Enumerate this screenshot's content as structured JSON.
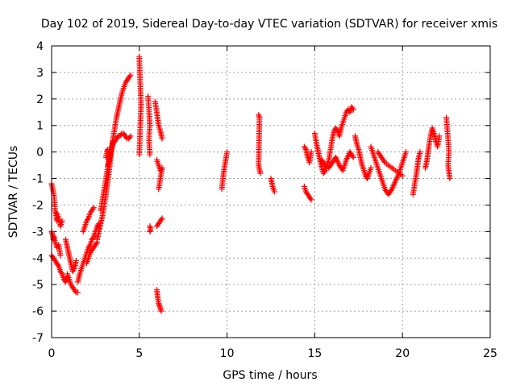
{
  "chart_data": {
    "type": "scatter",
    "title": "Day 102 of 2019, Sidereal Day-to-day VTEC variation (SDTVAR) for receiver xmis",
    "xlabel": "GPS time / hours",
    "ylabel": "SDTVAR / TECUs",
    "xlim": [
      0,
      25
    ],
    "ylim": [
      -7,
      4
    ],
    "xticks": [
      0,
      5,
      10,
      15,
      20,
      25
    ],
    "yticks": [
      -7,
      -6,
      -5,
      -4,
      -3,
      -2,
      -1,
      0,
      1,
      2,
      3,
      4
    ],
    "grid": true,
    "marker": "+",
    "colors": {
      "points": "#ff0000",
      "grid": "#a0a0a0",
      "axes": "#000000"
    },
    "series": [
      {
        "name": "SDTVAR",
        "segments": [
          {
            "x": [
              0.0,
              0.1,
              0.15,
              0.2,
              0.3,
              0.35
            ],
            "y": [
              -1.2,
              -1.5,
              -1.7,
              -2.2,
              -2.6,
              -2.5
            ]
          },
          {
            "x": [
              0.0,
              0.05,
              0.1,
              0.15,
              0.2,
              0.3,
              0.4,
              0.5
            ],
            "y": [
              -3.0,
              -3.1,
              -3.3,
              -3.2,
              -3.4,
              -3.6,
              -3.5,
              -3.9
            ]
          },
          {
            "x": [
              0.0,
              0.1,
              0.2,
              0.3,
              0.4,
              0.5,
              0.6,
              0.7,
              0.8,
              0.9
            ],
            "y": [
              -3.9,
              -4.0,
              -4.1,
              -4.2,
              -4.3,
              -4.5,
              -4.6,
              -4.8,
              -4.9,
              -4.7
            ]
          },
          {
            "x": [
              0.3,
              0.4,
              0.5,
              0.6
            ],
            "y": [
              -2.3,
              -2.5,
              -2.8,
              -2.6
            ]
          },
          {
            "x": [
              0.8,
              0.9,
              1.0,
              1.1,
              1.2,
              1.3,
              1.4
            ],
            "y": [
              -3.3,
              -3.6,
              -3.9,
              -4.2,
              -4.5,
              -4.4,
              -4.1
            ]
          },
          {
            "x": [
              0.9,
              1.0,
              1.1,
              1.2,
              1.3,
              1.4,
              1.5
            ],
            "y": [
              -4.6,
              -4.8,
              -5.0,
              -5.1,
              -5.2,
              -5.3,
              -5.3
            ]
          },
          {
            "x": [
              1.5,
              1.6,
              1.7,
              1.8,
              1.9,
              2.0,
              2.1,
              2.2,
              2.3,
              2.4,
              2.5,
              2.6,
              2.7
            ],
            "y": [
              -4.9,
              -4.6,
              -4.4,
              -4.2,
              -4.0,
              -3.8,
              -3.6,
              -3.5,
              -3.3,
              -3.2,
              -3.0,
              -2.8,
              -2.7
            ]
          },
          {
            "x": [
              1.8,
              1.9,
              2.0,
              2.1,
              2.2,
              2.3,
              2.4
            ],
            "y": [
              -3.0,
              -2.8,
              -2.6,
              -2.5,
              -2.3,
              -2.2,
              -2.1
            ]
          },
          {
            "x": [
              2.0,
              2.1,
              2.2,
              2.3,
              2.4,
              2.5,
              2.6
            ],
            "y": [
              -4.2,
              -4.0,
              -3.8,
              -3.7,
              -3.6,
              -3.5,
              -3.4
            ]
          },
          {
            "x": [
              2.6,
              2.7,
              2.8,
              2.9,
              3.0,
              3.1,
              3.2,
              3.3,
              3.4,
              3.5,
              3.6,
              3.7,
              3.8,
              3.9,
              4.0,
              4.1,
              4.2,
              4.3,
              4.4,
              4.5
            ],
            "y": [
              -3.3,
              -3.0,
              -2.7,
              -2.4,
              -2.0,
              -1.6,
              -1.1,
              -0.6,
              0.0,
              0.5,
              0.9,
              1.3,
              1.6,
              1.9,
              2.2,
              2.4,
              2.6,
              2.7,
              2.8,
              2.9
            ]
          },
          {
            "x": [
              2.8,
              2.9,
              3.0,
              3.1,
              3.2,
              3.3,
              3.4,
              3.5
            ],
            "y": [
              -2.2,
              -1.8,
              -1.4,
              -1.0,
              -0.6,
              -0.3,
              0.1,
              0.4
            ]
          },
          {
            "x": [
              3.2,
              3.3,
              3.4,
              3.5,
              3.6,
              3.7,
              3.8,
              3.9,
              4.0,
              4.1,
              4.2,
              4.3,
              4.4,
              4.5
            ],
            "y": [
              -0.5,
              -0.2,
              0.1,
              0.3,
              0.4,
              0.5,
              0.6,
              0.6,
              0.7,
              0.7,
              0.6,
              0.5,
              0.5,
              0.6
            ]
          },
          {
            "x": [
              3.1,
              3.15,
              3.2
            ],
            "y": [
              -0.2,
              0.0,
              0.1
            ]
          },
          {
            "x": [
              5.0,
              5.05,
              5.1,
              5.0
            ],
            "y": [
              3.6,
              2.6,
              1.8,
              -0.1
            ]
          },
          {
            "x": [
              5.5,
              5.55,
              5.6,
              5.55,
              5.6
            ],
            "y": [
              2.1,
              1.6,
              1.0,
              0.5,
              -0.1
            ]
          },
          {
            "x": [
              5.6,
              5.65,
              5.6
            ],
            "y": [
              -2.8,
              -2.9,
              -3.0
            ]
          },
          {
            "x": [
              5.9,
              6.0,
              6.1,
              6.2,
              6.3
            ],
            "y": [
              1.9,
              1.5,
              1.0,
              0.8,
              0.5
            ]
          },
          {
            "x": [
              6.0,
              6.1,
              6.2,
              6.3,
              6.1
            ],
            "y": [
              -0.3,
              -0.5,
              -0.7,
              -0.6,
              -1.4
            ]
          },
          {
            "x": [
              6.0,
              6.1,
              6.2,
              6.3
            ],
            "y": [
              -2.8,
              -2.7,
              -2.6,
              -2.5
            ]
          },
          {
            "x": [
              6.0,
              6.05,
              6.1,
              6.15,
              6.2,
              6.25
            ],
            "y": [
              -5.2,
              -5.5,
              -5.7,
              -5.8,
              -5.9,
              -6.0
            ]
          },
          {
            "x": [
              9.7,
              9.8,
              9.9,
              10.0
            ],
            "y": [
              -1.4,
              -0.8,
              -0.4,
              0.0
            ]
          },
          {
            "x": [
              11.8,
              11.85,
              11.8,
              11.9
            ],
            "y": [
              1.4,
              1.3,
              -0.5,
              -0.8
            ]
          },
          {
            "x": [
              12.5,
              12.6,
              12.7
            ],
            "y": [
              -1.0,
              -1.3,
              -1.5
            ]
          },
          {
            "x": [
              14.4,
              14.5,
              14.6,
              14.7,
              14.8
            ],
            "y": [
              0.2,
              0.1,
              -0.2,
              -0.4,
              0.0
            ]
          },
          {
            "x": [
              14.4,
              14.5,
              14.6,
              14.7,
              14.8
            ],
            "y": [
              -1.3,
              -1.5,
              -1.6,
              -1.7,
              -1.8
            ]
          },
          {
            "x": [
              15.0,
              15.1,
              15.2,
              15.3,
              15.4,
              15.5,
              15.6,
              15.7,
              15.8,
              15.9,
              16.0,
              16.1,
              16.2,
              16.3,
              16.4,
              16.5,
              16.6,
              16.7,
              16.8,
              16.9,
              17.0,
              17.1,
              17.2
            ],
            "y": [
              0.7,
              0.3,
              0.0,
              -0.3,
              -0.6,
              -0.8,
              -0.7,
              -0.5,
              -0.3,
              0.1,
              0.5,
              0.8,
              0.9,
              0.8,
              0.6,
              0.9,
              1.1,
              1.3,
              1.5,
              1.6,
              1.5,
              1.7,
              1.6
            ]
          },
          {
            "x": [
              15.4,
              15.6,
              15.8,
              16.0,
              16.2,
              16.4,
              16.6,
              16.8,
              17.0,
              17.2
            ],
            "y": [
              -0.3,
              -0.5,
              -0.6,
              -0.4,
              -0.2,
              -0.5,
              -0.7,
              -0.3,
              0.0,
              -0.2
            ]
          },
          {
            "x": [
              17.3,
              17.4,
              17.5,
              17.6,
              17.7,
              17.8,
              17.9,
              18.0,
              18.1,
              18.2
            ],
            "y": [
              0.6,
              0.3,
              0.1,
              -0.2,
              -0.5,
              -0.7,
              -0.9,
              -1.0,
              -0.8,
              -0.6
            ]
          },
          {
            "x": [
              18.2,
              18.4,
              18.6,
              18.8,
              19.0,
              19.2,
              19.4,
              19.6,
              19.8,
              20.0,
              20.2
            ],
            "y": [
              0.2,
              -0.2,
              -0.6,
              -1.0,
              -1.4,
              -1.6,
              -1.4,
              -1.1,
              -0.8,
              -0.4,
              0.0
            ]
          },
          {
            "x": [
              18.6,
              18.8,
              19.0,
              19.2,
              19.4,
              19.6,
              19.8,
              20.0
            ],
            "y": [
              0.0,
              -0.2,
              -0.4,
              -0.5,
              -0.6,
              -0.7,
              -0.8,
              -0.9
            ]
          },
          {
            "x": [
              20.6,
              20.7,
              20.8,
              20.9,
              21.0
            ],
            "y": [
              -1.6,
              -1.2,
              -0.8,
              -0.3,
              0.0
            ]
          },
          {
            "x": [
              21.3,
              21.4,
              21.5,
              21.6,
              21.7,
              21.8,
              21.9,
              22.0,
              22.1
            ],
            "y": [
              -0.6,
              -0.3,
              0.2,
              0.6,
              0.9,
              0.7,
              0.4,
              0.2,
              0.6
            ]
          },
          {
            "x": [
              22.5,
              22.55,
              22.6,
              22.65,
              22.6,
              22.7
            ],
            "y": [
              1.3,
              0.9,
              0.5,
              0.0,
              -0.5,
              -1.0
            ]
          }
        ]
      }
    ]
  }
}
